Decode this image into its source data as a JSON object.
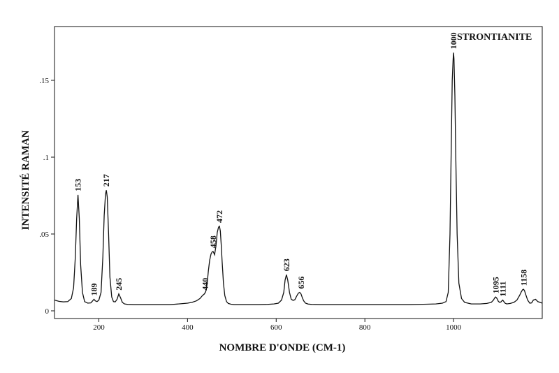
{
  "chart_data": {
    "type": "line",
    "title": "",
    "mineral_name": "STRONTIANITE",
    "xlabel": "NOMBRE D'ONDE (CM-1)",
    "ylabel": "INTENSITÉ RAMAN",
    "xlim": [
      100,
      1200
    ],
    "ylim": [
      -0.005,
      0.185
    ],
    "x_ticks": [
      200,
      400,
      600,
      800,
      1000
    ],
    "x_tick_labels": [
      "200",
      "400",
      "600",
      "800",
      "1000"
    ],
    "y_ticks": [
      0,
      0.05,
      0.1,
      0.15
    ],
    "y_tick_labels": [
      "0",
      ".05",
      ".1",
      ".15"
    ],
    "grid": false,
    "line_color": "#111111",
    "baseline": 0.0045,
    "peaks": [
      {
        "label": "153",
        "x": 153,
        "y": 0.0755
      },
      {
        "label": "189",
        "x": 189,
        "y": 0.0075
      },
      {
        "label": "217",
        "x": 217,
        "y": 0.0785
      },
      {
        "label": "245",
        "x": 245,
        "y": 0.011
      },
      {
        "label": "440",
        "x": 440,
        "y": 0.011
      },
      {
        "label": "458",
        "x": 458,
        "y": 0.0385
      },
      {
        "label": "472",
        "x": 472,
        "y": 0.055
      },
      {
        "label": "623",
        "x": 623,
        "y": 0.0235
      },
      {
        "label": "656",
        "x": 656,
        "y": 0.012
      },
      {
        "label": "1000",
        "x": 1000,
        "y": 0.168
      },
      {
        "label": "1095",
        "x": 1095,
        "y": 0.009
      },
      {
        "label": "1111",
        "x": 1111,
        "y": 0.007
      },
      {
        "label": "1158",
        "x": 1158,
        "y": 0.014
      }
    ],
    "series": [
      {
        "x": [
          100,
          110,
          120,
          130,
          138,
          143,
          147,
          150,
          153,
          156,
          159,
          163,
          168,
          175,
          182,
          186,
          189,
          192,
          196,
          200,
          205,
          209,
          212,
          215,
          217,
          219,
          222,
          225,
          229,
          233,
          237,
          241,
          245,
          249,
          253,
          258,
          265,
          280,
          300,
          320,
          340,
          360,
          380,
          400,
          410,
          420,
          428,
          434,
          438,
          441,
          444,
          447,
          450,
          453,
          456,
          458,
          461,
          464,
          467,
          470,
          472,
          474,
          476,
          478,
          481,
          484,
          488,
          492,
          498,
          505,
          520,
          540,
          560,
          580,
          595,
          605,
          612,
          617,
          620,
          623,
          626,
          630,
          634,
          638,
          642,
          646,
          650,
          653,
          656,
          659,
          662,
          666,
          672,
          680,
          700,
          750,
          800,
          850,
          900,
          940,
          960,
          975,
          983,
          988,
          992,
          995,
          997,
          999,
          1000,
          1001,
          1003,
          1005,
          1008,
          1012,
          1018,
          1025,
          1040,
          1060,
          1075,
          1085,
          1090,
          1093,
          1095,
          1098,
          1101,
          1104,
          1107,
          1109,
          1111,
          1113,
          1116,
          1120,
          1128,
          1136,
          1143,
          1149,
          1153,
          1156,
          1158,
          1160,
          1163,
          1167,
          1172,
          1176,
          1180,
          1185,
          1190,
          1195,
          1200
        ],
        "y": [
          0.007,
          0.0062,
          0.0058,
          0.006,
          0.008,
          0.015,
          0.035,
          0.06,
          0.0755,
          0.06,
          0.03,
          0.012,
          0.006,
          0.005,
          0.0052,
          0.0065,
          0.0075,
          0.0065,
          0.006,
          0.007,
          0.012,
          0.035,
          0.062,
          0.076,
          0.0785,
          0.074,
          0.05,
          0.022,
          0.009,
          0.006,
          0.0058,
          0.0075,
          0.011,
          0.0085,
          0.0055,
          0.0045,
          0.0042,
          0.004,
          0.004,
          0.004,
          0.004,
          0.004,
          0.0045,
          0.005,
          0.0055,
          0.0065,
          0.008,
          0.01,
          0.011,
          0.0125,
          0.017,
          0.026,
          0.033,
          0.037,
          0.0385,
          0.0385,
          0.0365,
          0.042,
          0.051,
          0.0545,
          0.055,
          0.052,
          0.043,
          0.032,
          0.018,
          0.01,
          0.006,
          0.0048,
          0.0043,
          0.004,
          0.004,
          0.004,
          0.004,
          0.0042,
          0.0045,
          0.005,
          0.007,
          0.012,
          0.02,
          0.0235,
          0.02,
          0.012,
          0.0075,
          0.0068,
          0.0072,
          0.0095,
          0.0115,
          0.012,
          0.011,
          0.0085,
          0.0065,
          0.005,
          0.0044,
          0.0042,
          0.004,
          0.004,
          0.004,
          0.004,
          0.004,
          0.0043,
          0.0045,
          0.005,
          0.006,
          0.012,
          0.05,
          0.11,
          0.15,
          0.164,
          0.168,
          0.164,
          0.14,
          0.1,
          0.05,
          0.018,
          0.008,
          0.0055,
          0.0045,
          0.0045,
          0.0048,
          0.0055,
          0.007,
          0.0085,
          0.009,
          0.008,
          0.0062,
          0.0055,
          0.0058,
          0.0065,
          0.007,
          0.0062,
          0.005,
          0.0045,
          0.0048,
          0.0055,
          0.007,
          0.01,
          0.0125,
          0.0138,
          0.014,
          0.0132,
          0.0105,
          0.007,
          0.005,
          0.0052,
          0.007,
          0.0075,
          0.006,
          0.0055,
          0.005
        ]
      }
    ]
  }
}
